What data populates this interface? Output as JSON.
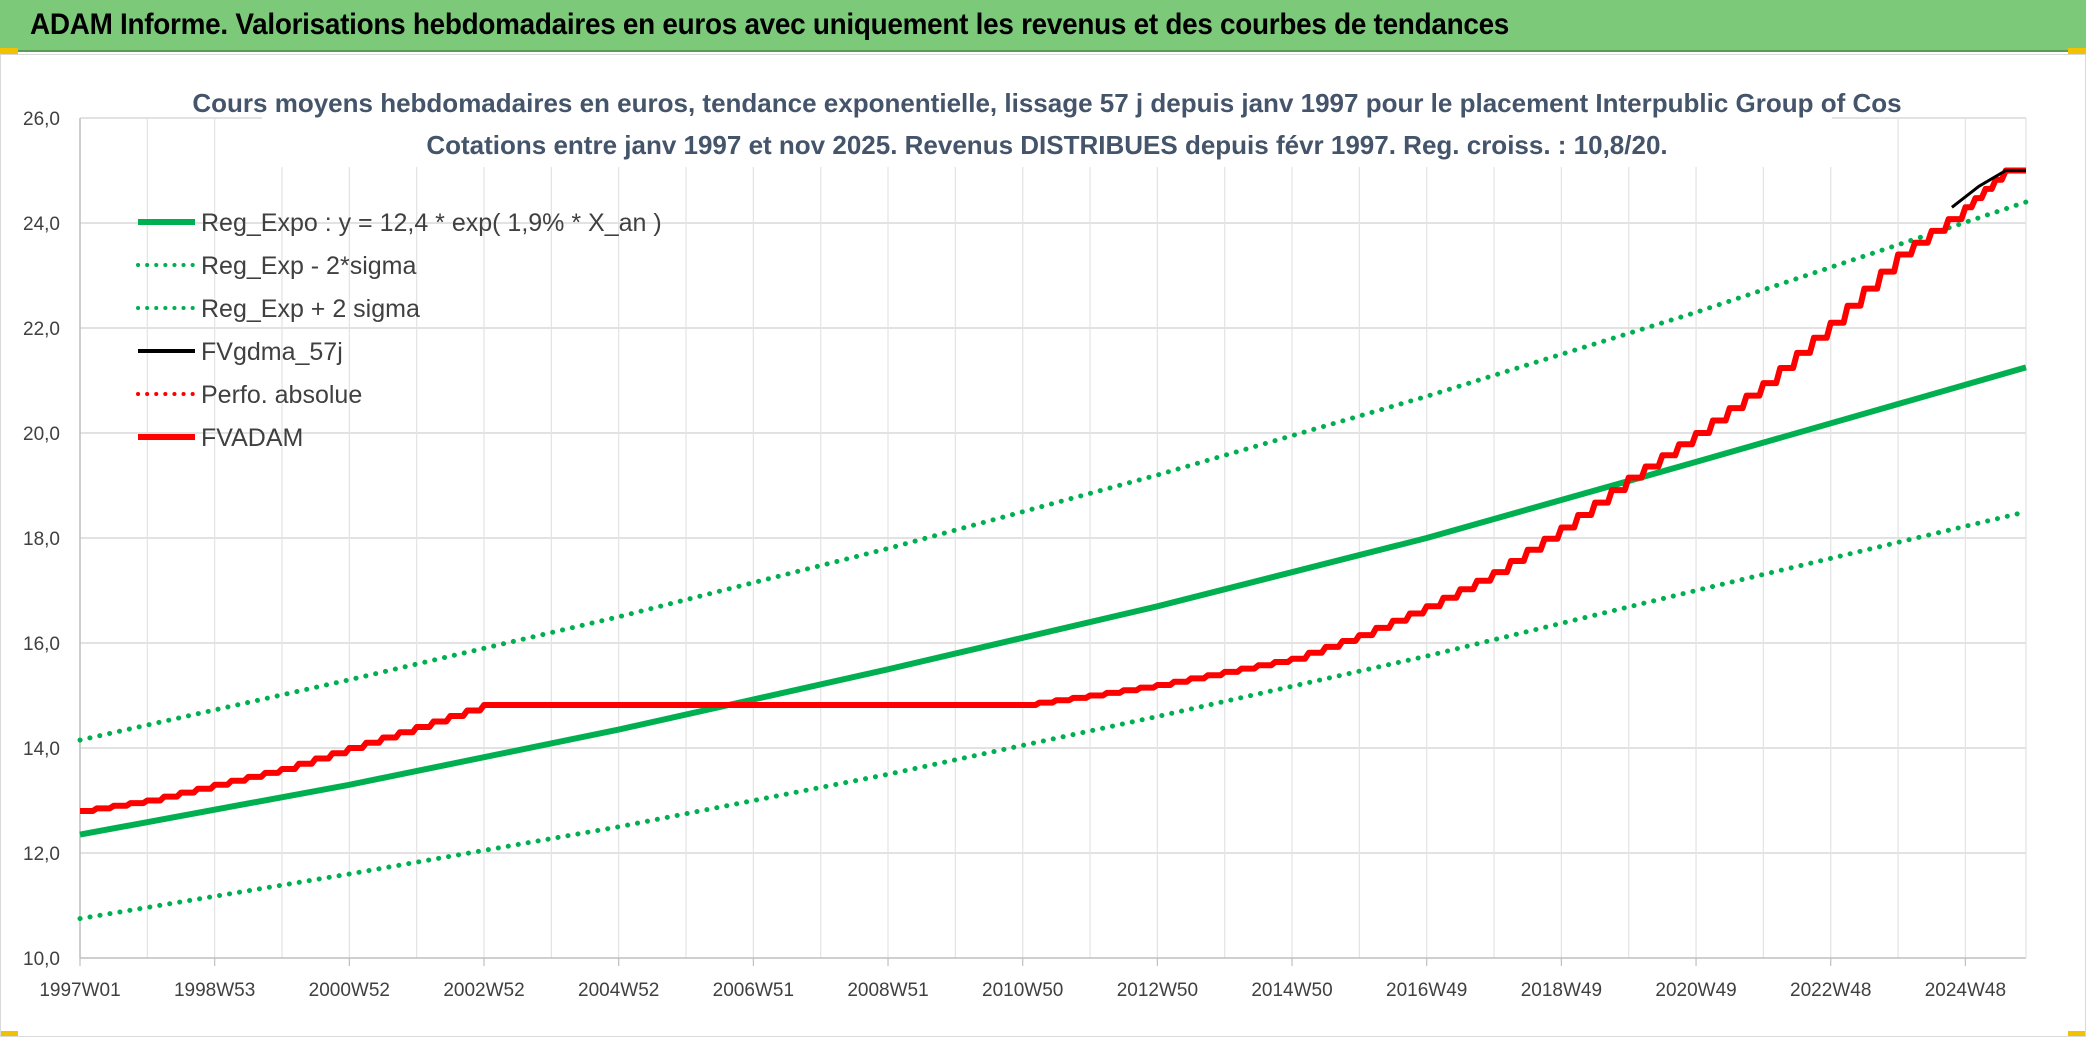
{
  "banner": {
    "title": "ADAM Informe. Valorisations hebdomadaires en euros avec uniquement les revenus et des courbes de tendances"
  },
  "chart_data": {
    "type": "line",
    "title_line1": "Cours moyens hebdomadaires en euros, tendance exponentielle, lissage 57 j depuis janv 1997 pour le placement Interpublic Group of Cos",
    "title_line2": "Cotations entre janv 1997 et nov 2025. Revenus DISTRIBUES depuis févr 1997. Reg. croiss. : 10,8/20.",
    "ylim": [
      10.0,
      26.0
    ],
    "y_ticks": [
      "10,0",
      "12,0",
      "14,0",
      "16,0",
      "18,0",
      "20,0",
      "22,0",
      "24,0",
      "26,0"
    ],
    "x_range_years": [
      1997.0,
      2025.9
    ],
    "x_ticks": [
      {
        "label": "1997W01",
        "year": 1997.0
      },
      {
        "label": "1998W53",
        "year": 1999.0
      },
      {
        "label": "2000W52",
        "year": 2001.0
      },
      {
        "label": "2002W52",
        "year": 2003.0
      },
      {
        "label": "2004W52",
        "year": 2005.0
      },
      {
        "label": "2006W51",
        "year": 2007.0
      },
      {
        "label": "2008W51",
        "year": 2009.0
      },
      {
        "label": "2010W50",
        "year": 2011.0
      },
      {
        "label": "2012W50",
        "year": 2013.0
      },
      {
        "label": "2014W50",
        "year": 2015.0
      },
      {
        "label": "2016W49",
        "year": 2017.0
      },
      {
        "label": "2018W49",
        "year": 2019.0
      },
      {
        "label": "2020W49",
        "year": 2021.0
      },
      {
        "label": "2022W48",
        "year": 2023.0
      },
      {
        "label": "2024W48",
        "year": 2025.0
      }
    ],
    "legend_placement": "top-left",
    "series": [
      {
        "name": "Reg_Expo : y = 12,4 * exp( 1,9% *  X_an )",
        "color": "#00b050",
        "style": "solid",
        "x": [
          1997,
          2001,
          2005,
          2009,
          2013,
          2017,
          2021,
          2025.9
        ],
        "y": [
          12.35,
          13.3,
          14.35,
          15.5,
          16.7,
          18.0,
          19.45,
          21.25
        ]
      },
      {
        "name": "Reg_Exp - 2*sigma",
        "color": "#00b050",
        "style": "dotted",
        "x": [
          1997,
          2001,
          2005,
          2009,
          2013,
          2017,
          2021,
          2025.9
        ],
        "y": [
          10.75,
          11.6,
          12.5,
          13.5,
          14.6,
          15.75,
          17.0,
          18.5
        ]
      },
      {
        "name": "Reg_Exp + 2 sigma",
        "color": "#00b050",
        "style": "dotted",
        "x": [
          1997,
          2001,
          2005,
          2009,
          2013,
          2017,
          2021,
          2025.9
        ],
        "y": [
          14.15,
          15.3,
          16.5,
          17.8,
          19.2,
          20.7,
          22.3,
          24.4
        ]
      },
      {
        "name": "FVgdma_57j",
        "color": "#000000",
        "style": "solid",
        "x": [
          2024.8,
          2025.2,
          2025.6,
          2025.9
        ],
        "y": [
          24.3,
          24.7,
          25.0,
          25.0
        ]
      },
      {
        "name": "Perfo. absolue",
        "color": "#ff0000",
        "style": "dotted",
        "x": [],
        "y": []
      },
      {
        "name": "FVADAM",
        "color": "#ff0000",
        "style": "solid",
        "x": [
          1997.0,
          1998.0,
          1999.0,
          2000.0,
          2001.0,
          2002.0,
          2003.0,
          2005.0,
          2007.0,
          2009.0,
          2011.0,
          2012.0,
          2013.0,
          2014.0,
          2015.0,
          2016.0,
          2017.0,
          2018.0,
          2019.0,
          2020.0,
          2021.0,
          2022.0,
          2023.0,
          2024.0,
          2025.0,
          2025.6,
          2025.9
        ],
        "y": [
          12.8,
          13.0,
          13.3,
          13.6,
          14.0,
          14.4,
          14.82,
          14.82,
          14.82,
          14.82,
          14.82,
          15.0,
          15.2,
          15.45,
          15.7,
          16.15,
          16.7,
          17.35,
          18.2,
          19.15,
          20.0,
          20.95,
          22.1,
          23.4,
          24.3,
          25.0,
          25.0
        ]
      }
    ]
  }
}
